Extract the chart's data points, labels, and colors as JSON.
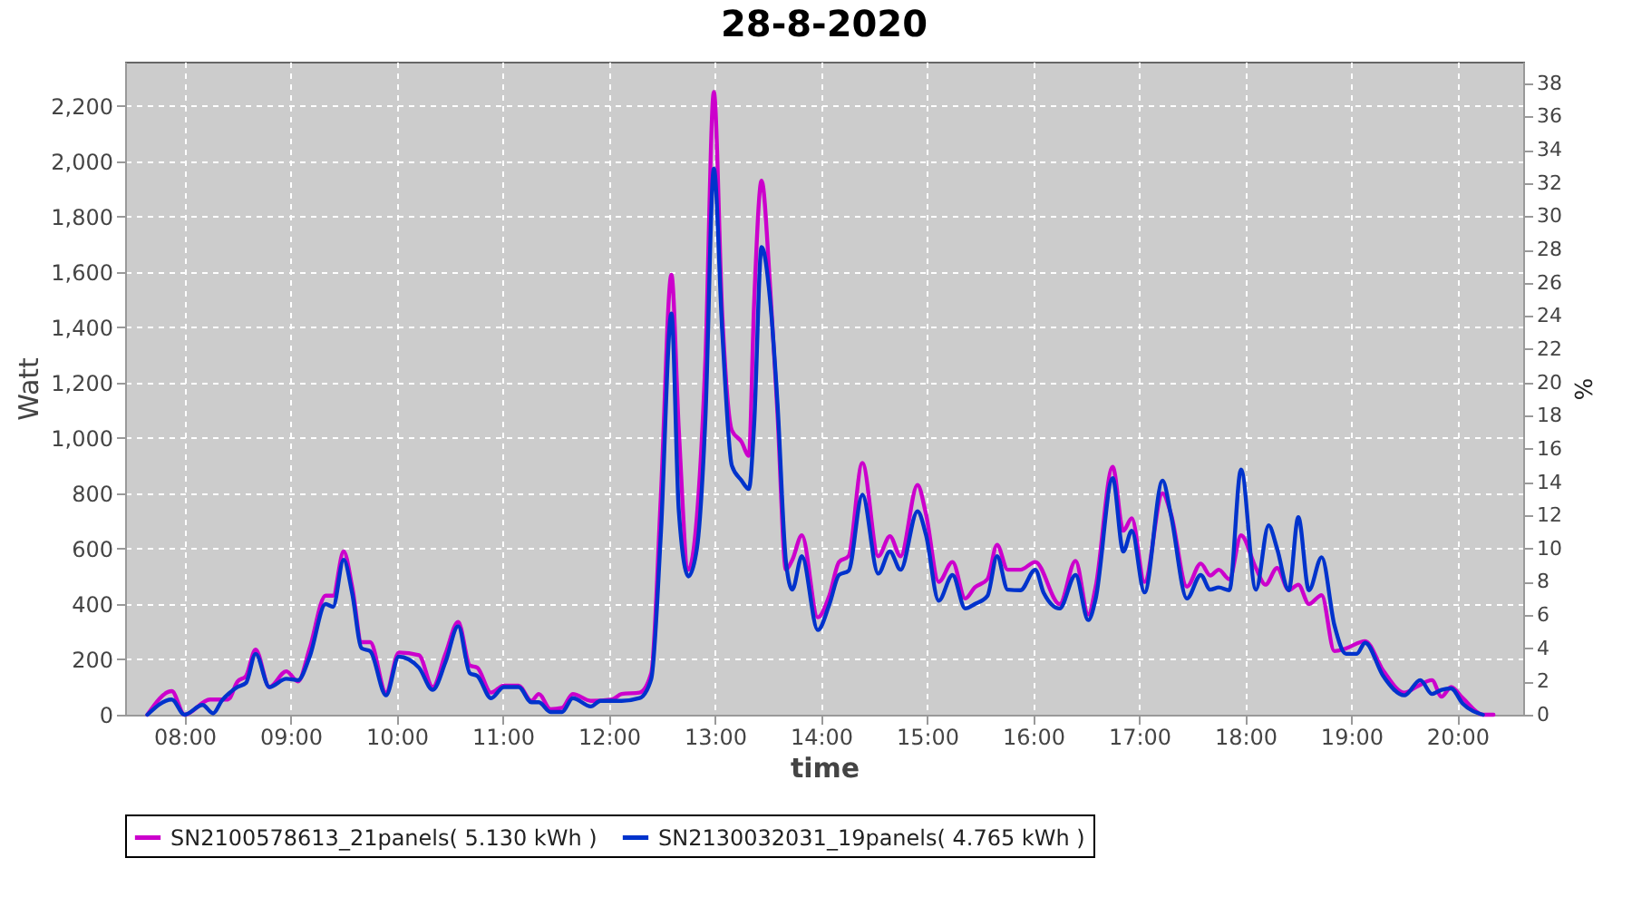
{
  "chart_data": {
    "type": "line",
    "title": "28-8-2020",
    "xlabel": "time",
    "ylabel": "Watt",
    "y2label": "%",
    "xlim": [
      7.44,
      20.62
    ],
    "xticks": [
      {
        "value": 8,
        "label": "08:00"
      },
      {
        "value": 9,
        "label": "09:00"
      },
      {
        "value": 10,
        "label": "10:00"
      },
      {
        "value": 11,
        "label": "11:00"
      },
      {
        "value": 12,
        "label": "12:00"
      },
      {
        "value": 13,
        "label": "13:00"
      },
      {
        "value": 14,
        "label": "14:00"
      },
      {
        "value": 15,
        "label": "15:00"
      },
      {
        "value": 16,
        "label": "16:00"
      },
      {
        "value": 17,
        "label": "17:00"
      },
      {
        "value": 18,
        "label": "18:00"
      },
      {
        "value": 19,
        "label": "19:00"
      },
      {
        "value": 20,
        "label": "20:00"
      }
    ],
    "ylim": [
      0,
      2360
    ],
    "yticks": [
      0,
      200,
      400,
      600,
      800,
      {
        "value": 1000,
        "label": "1,000"
      },
      {
        "value": 1200,
        "label": "1,200"
      },
      {
        "value": 1400,
        "label": "1,400"
      },
      {
        "value": 1600,
        "label": "1,600"
      },
      {
        "value": 1800,
        "label": "1,800"
      },
      {
        "value": 2000,
        "label": "2,000"
      },
      {
        "value": 2200,
        "label": "2,200"
      }
    ],
    "y2lim": [
      0,
      39.3
    ],
    "y2ticks": [
      0,
      2,
      4,
      6,
      8,
      10,
      12,
      14,
      16,
      18,
      20,
      22,
      24,
      26,
      28,
      30,
      32,
      34,
      36,
      38
    ],
    "grid": true,
    "legend": "bottom",
    "line_style": "solid",
    "series": [
      {
        "name": "SN2100578613_21panels( 5.130 kWh )",
        "color": "#cc00cc",
        "x": [
          7.65,
          7.88,
          8.0,
          8.24,
          8.41,
          8.5,
          8.58,
          8.67,
          8.8,
          8.96,
          9.07,
          9.18,
          9.33,
          9.4,
          9.5,
          9.58,
          9.67,
          9.75,
          9.9,
          10.02,
          10.21,
          10.34,
          10.46,
          10.58,
          10.69,
          10.76,
          10.89,
          11.01,
          11.15,
          11.27,
          11.34,
          11.45,
          11.56,
          11.66,
          11.83,
          12.03,
          12.12,
          12.29,
          12.4,
          12.49,
          12.59,
          12.66,
          12.75,
          12.83,
          12.91,
          12.99,
          13.07,
          13.16,
          13.25,
          13.32,
          13.37,
          13.44,
          13.52,
          13.59,
          13.67,
          13.73,
          13.82,
          13.97,
          14.08,
          14.17,
          14.26,
          14.39,
          14.54,
          14.65,
          14.75,
          14.91,
          14.99,
          15.11,
          15.24,
          15.36,
          15.45,
          15.57,
          15.66,
          15.76,
          15.88,
          16.02,
          16.25,
          16.4,
          16.52,
          16.59,
          16.75,
          16.85,
          16.93,
          17.05,
          17.22,
          17.3,
          17.45,
          17.58,
          17.67,
          17.75,
          17.85,
          17.96,
          18.1,
          18.19,
          18.3,
          18.41,
          18.5,
          18.6,
          18.72,
          18.84,
          18.95,
          19.13,
          19.3,
          19.5,
          19.61,
          19.76,
          19.85,
          19.94,
          20.05,
          20.24,
          20.34
        ],
        "values": [
          0,
          85,
          0,
          55,
          55,
          120,
          140,
          235,
          100,
          157,
          120,
          240,
          430,
          430,
          590,
          463,
          262,
          262,
          80,
          225,
          215,
          100,
          220,
          335,
          178,
          170,
          80,
          105,
          105,
          50,
          75,
          20,
          25,
          75,
          50,
          55,
          75,
          80,
          150,
          785,
          1590,
          1027,
          524,
          715,
          1279,
          2250,
          1440,
          1027,
          987,
          936,
          1490,
          1930,
          1550,
          1087,
          524,
          560,
          648,
          352,
          432,
          552,
          573,
          910,
          573,
          645,
          573,
          830,
          725,
          480,
          552,
          420,
          460,
          490,
          614,
          524,
          524,
          552,
          400,
          556,
          362,
          463,
          896,
          665,
          710,
          480,
          800,
          725,
          463,
          546,
          503,
          524,
          490,
          648,
          530,
          470,
          530,
          450,
          470,
          400,
          432,
          230,
          240,
          266,
          160,
          80,
          100,
          125,
          65,
          100,
          60,
          0,
          0
        ]
      },
      {
        "name": "SN2130032031_19panels( 4.765 kWh )",
        "color": "#0033cc",
        "x": [
          7.65,
          7.88,
          8.0,
          8.17,
          8.27,
          8.35,
          8.5,
          8.58,
          8.67,
          8.8,
          8.96,
          9.07,
          9.18,
          9.33,
          9.4,
          9.5,
          9.58,
          9.67,
          9.75,
          9.9,
          10.02,
          10.21,
          10.34,
          10.46,
          10.58,
          10.69,
          10.76,
          10.89,
          11.01,
          11.15,
          11.27,
          11.34,
          11.45,
          11.56,
          11.66,
          11.83,
          11.92,
          12.03,
          12.12,
          12.29,
          12.4,
          12.49,
          12.59,
          12.66,
          12.75,
          12.83,
          12.91,
          12.99,
          13.07,
          13.16,
          13.25,
          13.32,
          13.37,
          13.44,
          13.52,
          13.59,
          13.67,
          13.73,
          13.82,
          13.97,
          14.08,
          14.17,
          14.26,
          14.39,
          14.54,
          14.65,
          14.75,
          14.91,
          14.99,
          15.11,
          15.24,
          15.36,
          15.45,
          15.57,
          15.66,
          15.76,
          15.88,
          16.02,
          16.1,
          16.25,
          16.4,
          16.52,
          16.59,
          16.75,
          16.85,
          16.93,
          17.05,
          17.22,
          17.3,
          17.45,
          17.58,
          17.67,
          17.75,
          17.85,
          17.96,
          18.1,
          18.22,
          18.3,
          18.41,
          18.5,
          18.6,
          18.72,
          18.84,
          18.95,
          19.05,
          19.13,
          19.3,
          19.5,
          19.65,
          19.76,
          19.85,
          19.94,
          20.05,
          20.24
        ],
        "values": [
          0,
          55,
          0,
          35,
          5,
          50,
          100,
          115,
          220,
          100,
          130,
          125,
          210,
          400,
          390,
          560,
          440,
          240,
          230,
          70,
          210,
          170,
          90,
          190,
          320,
          150,
          140,
          60,
          100,
          100,
          45,
          45,
          10,
          10,
          60,
          30,
          50,
          50,
          50,
          60,
          130,
          650,
          1450,
          735,
          500,
          600,
          1067,
          1973,
          1380,
          900,
          847,
          816,
          1050,
          1690,
          1500,
          1125,
          552,
          452,
          573,
          306,
          400,
          505,
          520,
          795,
          510,
          590,
          524,
          735,
          650,
          412,
          505,
          384,
          400,
          430,
          573,
          452,
          450,
          524,
          440,
          384,
          505,
          342,
          420,
          855,
          590,
          665,
          442,
          846,
          720,
          420,
          505,
          452,
          460,
          450,
          886,
          452,
          684,
          600,
          450,
          714,
          450,
          569,
          324,
          220,
          220,
          260,
          140,
          70,
          125,
          75,
          90,
          95,
          40,
          0
        ]
      }
    ]
  }
}
